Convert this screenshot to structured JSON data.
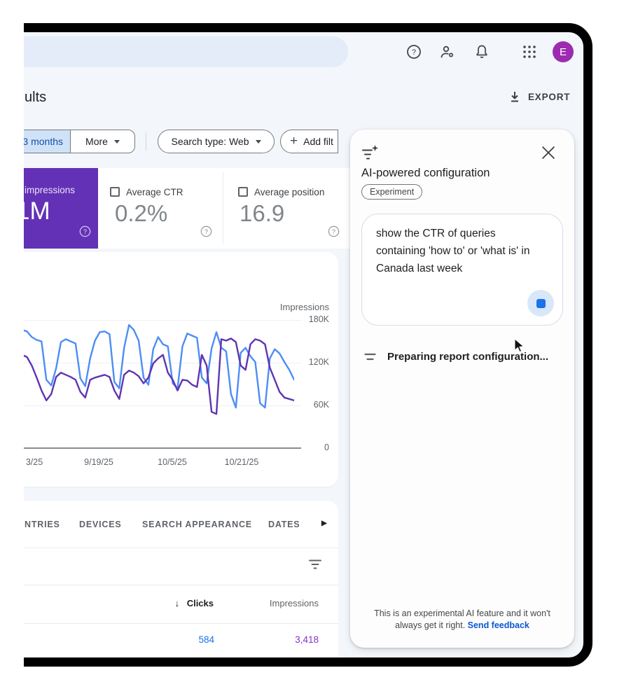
{
  "colors": {
    "app_background": "#f3f6fa",
    "frame": "#000000",
    "impressions_purple": "#6331b5",
    "avatar_purple": "#9d2bb0",
    "chip_blue_bg": "#cfe2f8",
    "link_blue": "#0b57d0",
    "clicks_value_blue": "#1a73e8",
    "impressions_value_purple": "#8430ce",
    "line_blue": "#4d8df6",
    "line_purple": "#5e35b1"
  },
  "topbar": {
    "avatar_letter": "E",
    "icons": [
      "help",
      "manage-accounts",
      "notifications",
      "apps-grid"
    ]
  },
  "page_header": {
    "title_fragment": "ults",
    "export_label": "EXPORT"
  },
  "filter_bar": {
    "date_chip_label": "3 months",
    "more_label": "More",
    "search_type_label": "Search type: Web",
    "add_filter_label": "Add filt",
    "add_filter_plus": "+"
  },
  "metric_cards": {
    "impressions": {
      "label": "impressions",
      "value": "1M"
    },
    "avg_ctr": {
      "label": "Average CTR",
      "value": "0.2%"
    },
    "avg_position": {
      "label": "Average position",
      "value": "16.9"
    }
  },
  "chart_data": {
    "type": "line",
    "y_axis": {
      "title": "Impressions",
      "ticks": [
        "180K",
        "120K",
        "60K",
        "0"
      ],
      "max_value_k": 180,
      "position": "right"
    },
    "x_ticks": [
      "3/25",
      "9/19/25",
      "10/5/25",
      "10/21/25"
    ],
    "grid": "horizontal",
    "legend": "none",
    "unit": "thousands",
    "series": [
      {
        "name": "blue-line",
        "color": "#4d8df6",
        "values_k": [
          150,
          143,
          146,
          140,
          125,
          114,
          132,
          166,
          164,
          156,
          152,
          150,
          96,
          88,
          112,
          149,
          153,
          150,
          147,
          98,
          87,
          126,
          151,
          163,
          164,
          160,
          93,
          84,
          141,
          173,
          166,
          151,
          99,
          89,
          139,
          156,
          146,
          143,
          91,
          84,
          143,
          161,
          158,
          155,
          99,
          91,
          140,
          163,
          141,
          136,
          76,
          57,
          134,
          141,
          129,
          121,
          63,
          57,
          126,
          139,
          133,
          121,
          110,
          96
        ]
      },
      {
        "name": "purple-line",
        "color": "#5e35b1",
        "values_k": [
          129,
          131,
          128,
          126,
          112,
          104,
          97,
          131,
          128,
          116,
          99,
          81,
          67,
          76,
          100,
          106,
          103,
          100,
          96,
          79,
          71,
          96,
          99,
          101,
          103,
          100,
          81,
          69,
          103,
          109,
          106,
          101,
          91,
          99,
          119,
          126,
          131,
          106,
          96,
          81,
          96,
          95,
          89,
          86,
          131,
          116,
          51,
          48,
          153,
          151,
          154,
          149,
          116,
          110,
          146,
          153,
          151,
          146,
          113,
          96,
          79,
          71,
          69,
          67
        ]
      }
    ]
  },
  "table": {
    "tabs": [
      "NTRIES",
      "DEVICES",
      "SEARCH APPEARANCE",
      "DATES"
    ],
    "more_tabs_arrow": "▶",
    "sort_arrow": "↓",
    "columns": {
      "clicks": "Clicks",
      "impressions": "Impressions"
    },
    "row": {
      "clicks": "584",
      "impressions": "3,418"
    }
  },
  "ai_panel": {
    "title": "AI-powered configuration",
    "badge": "Experiment",
    "prompt_lines": [
      "show the CTR of queries",
      "containing 'how to' or 'what is' in",
      "Canada  last week"
    ],
    "status": "Preparing report configuration...",
    "footer_line1": "This is an experimental AI feature and it won't",
    "footer_line2_prefix": "always get it right. ",
    "footer_link": "Send feedback"
  }
}
